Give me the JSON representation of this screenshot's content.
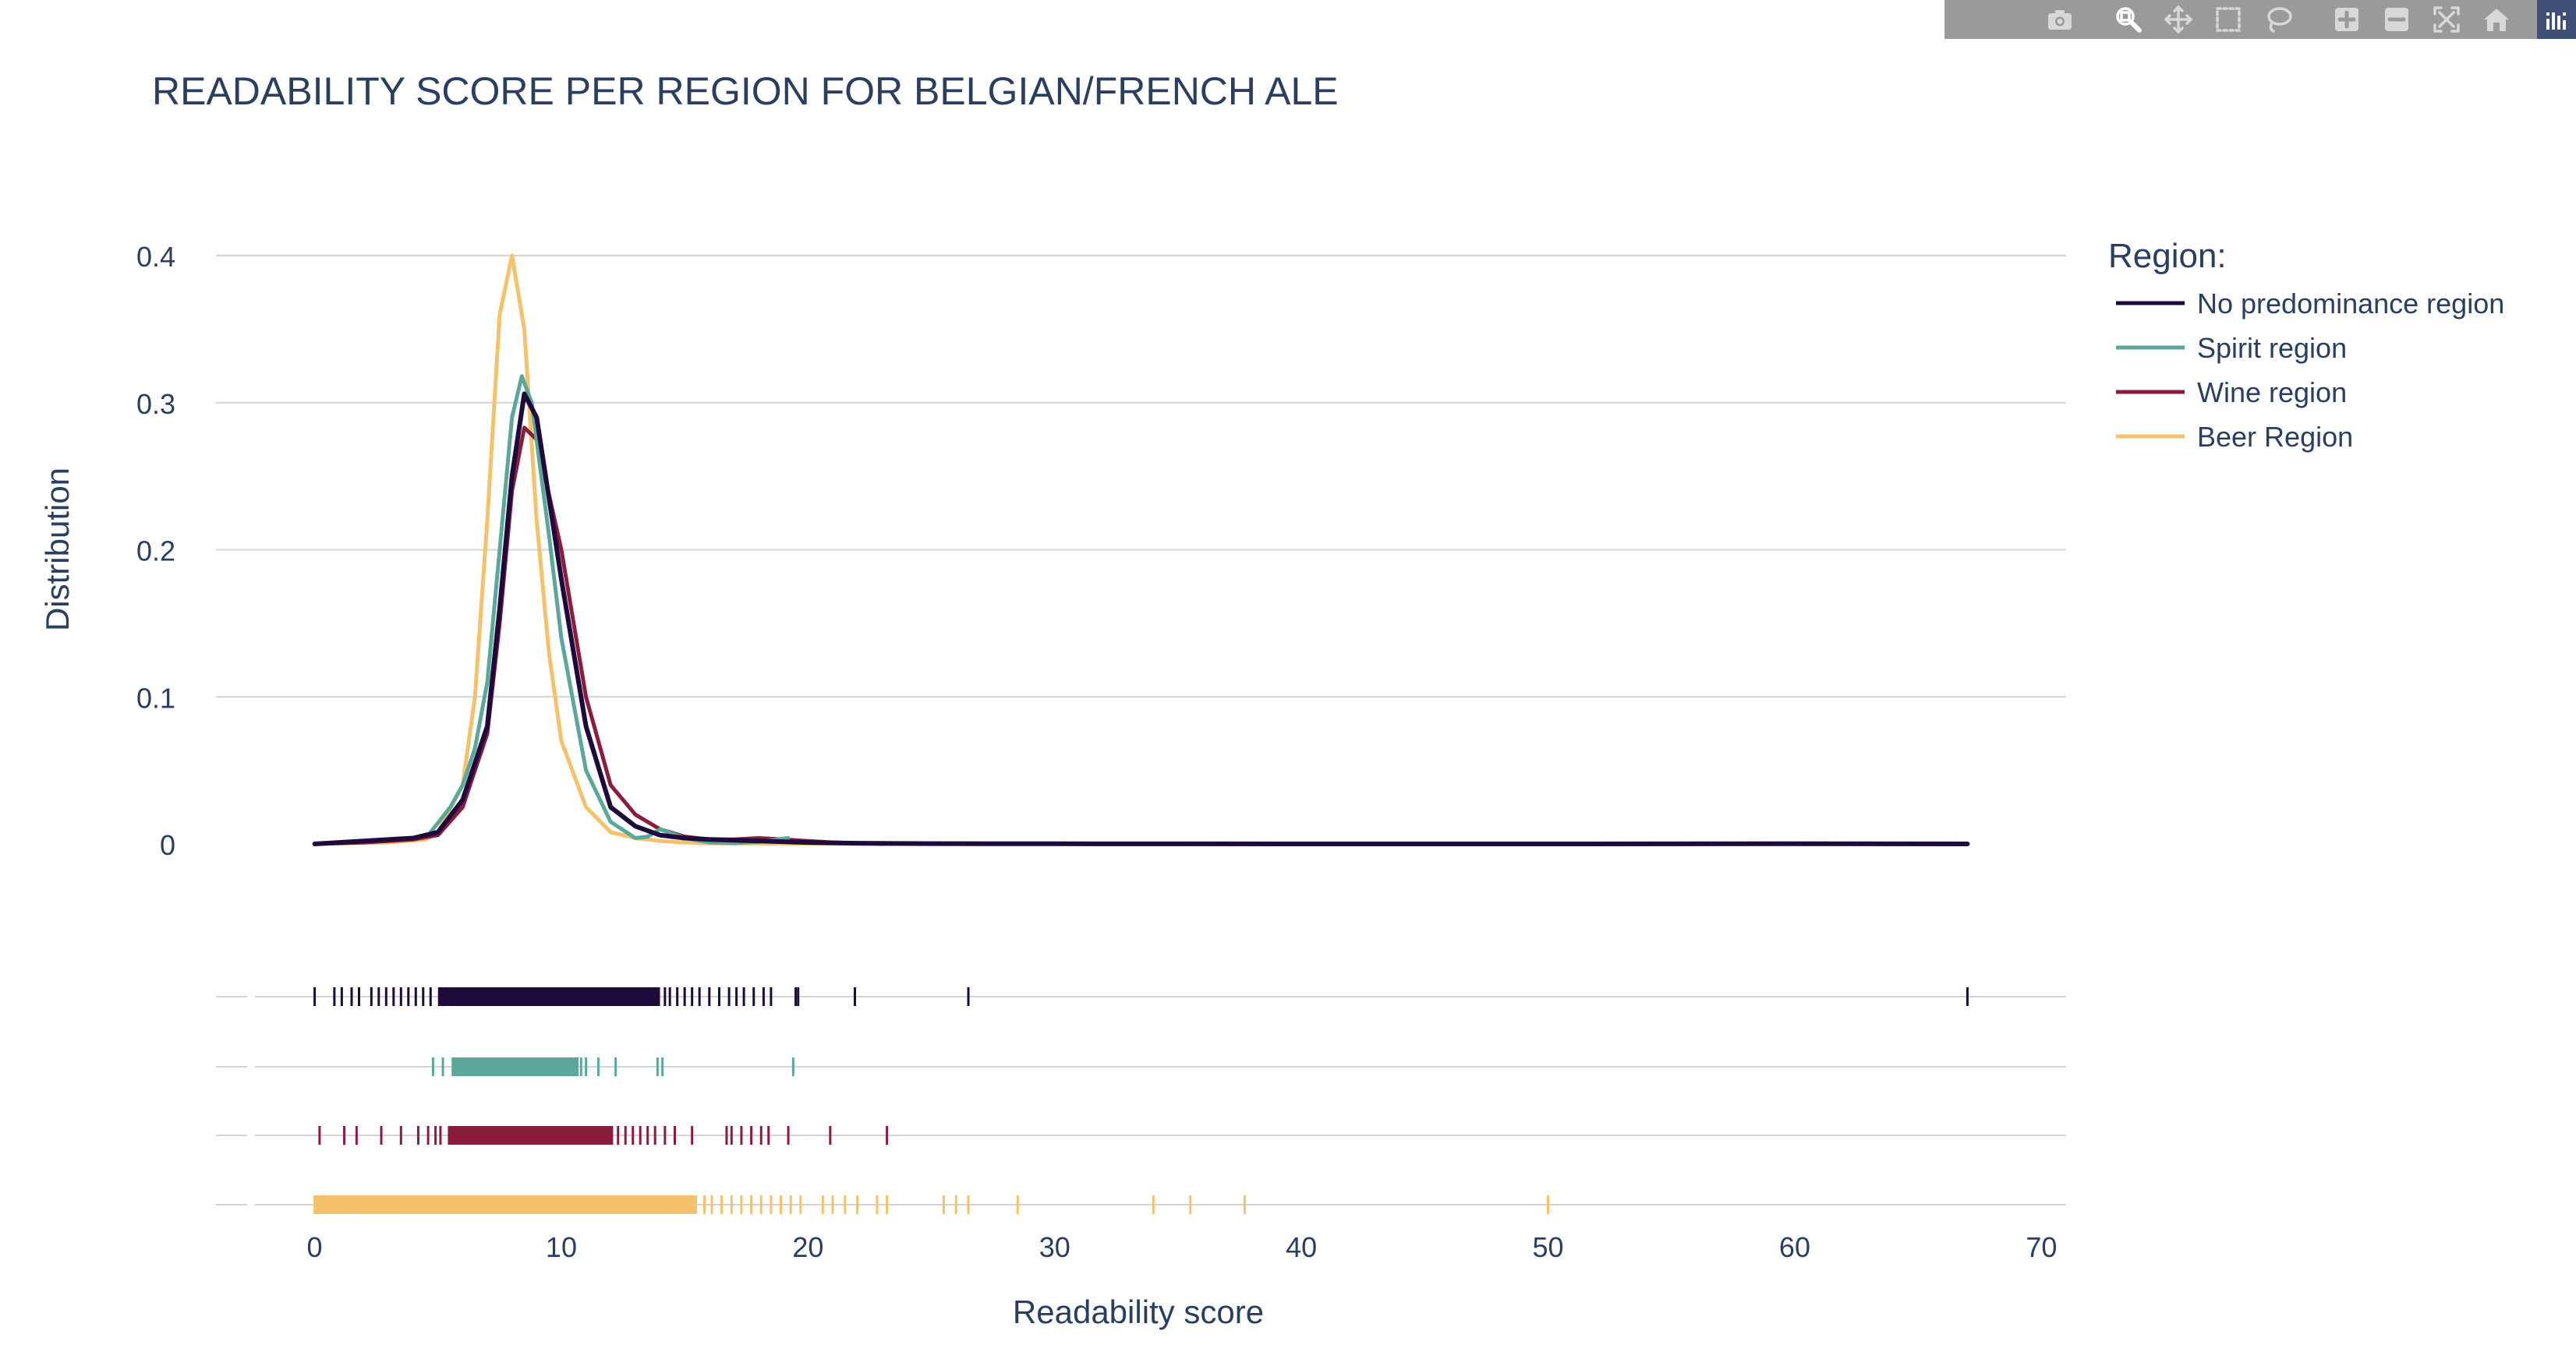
{
  "toolbar": {
    "buttons": [
      {
        "name": "camera-icon",
        "title": "Download plot as a png"
      },
      {
        "name": "zoom-icon",
        "title": "Zoom"
      },
      {
        "name": "pan-icon",
        "title": "Pan"
      },
      {
        "name": "box-select-icon",
        "title": "Box Select"
      },
      {
        "name": "lasso-select-icon",
        "title": "Lasso Select"
      },
      {
        "name": "zoom-in-icon",
        "title": "Zoom in"
      },
      {
        "name": "zoom-out-icon",
        "title": "Zoom out"
      },
      {
        "name": "autoscale-icon",
        "title": "Autoscale"
      },
      {
        "name": "reset-axes-icon",
        "title": "Reset axes"
      }
    ],
    "logo": "plotly-logo-icon"
  },
  "chart_data": {
    "type": "line",
    "title": "READABILITY SCORE PER REGION FOR BELGIAN/FRENCH ALE",
    "xlabel": "Readability score",
    "ylabel": "Distribution",
    "xlim": [
      -4,
      71
    ],
    "ylim": [
      0,
      0.4
    ],
    "x_ticks": [
      0,
      10,
      20,
      30,
      40,
      50,
      60,
      70
    ],
    "y_ticks": [
      0,
      0.1,
      0.2,
      0.3,
      0.4
    ],
    "y_tick_labels": [
      "0",
      "0.1",
      "0.2",
      "0.3",
      "0.4"
    ],
    "grid": true,
    "legend_title": "Region:",
    "legend_position": "top-right",
    "series": [
      {
        "name": "No predominance region",
        "color": "#1e0b3c",
        "x": [
          0,
          2,
          4,
          5,
          6,
          7,
          7.5,
          8,
          8.5,
          9,
          10,
          11,
          12,
          13,
          14,
          15,
          16,
          18,
          20,
          22,
          25,
          30,
          40,
          50,
          60,
          67
        ],
        "y": [
          0,
          0.002,
          0.004,
          0.008,
          0.03,
          0.08,
          0.16,
          0.25,
          0.306,
          0.29,
          0.18,
          0.08,
          0.025,
          0.012,
          0.006,
          0.004,
          0.003,
          0.002,
          0.001,
          0.0005,
          0.0002,
          0.0001,
          0,
          0,
          0.0001,
          0
        ]
      },
      {
        "name": "Spirit region",
        "color": "#5ba89a",
        "x": [
          4.7,
          5.5,
          6,
          6.5,
          7,
          7.5,
          8,
          8.4,
          8.8,
          9.5,
          10,
          11,
          12,
          13,
          13.5,
          14,
          15,
          16,
          17,
          18,
          19.2
        ],
        "y": [
          0.008,
          0.025,
          0.04,
          0.065,
          0.11,
          0.2,
          0.29,
          0.318,
          0.3,
          0.21,
          0.14,
          0.05,
          0.015,
          0.004,
          0.005,
          0.01,
          0.004,
          0.001,
          0.0005,
          0.0015,
          0.004
        ]
      },
      {
        "name": "Wine region",
        "color": "#8c1c3b",
        "x": [
          0,
          2,
          4,
          5,
          6,
          7,
          7.5,
          8,
          8.5,
          9,
          10,
          11,
          12,
          13,
          14,
          15,
          16,
          17,
          18,
          19,
          20,
          21,
          23.2
        ],
        "y": [
          0,
          0.001,
          0.003,
          0.006,
          0.025,
          0.075,
          0.15,
          0.24,
          0.283,
          0.275,
          0.2,
          0.1,
          0.04,
          0.02,
          0.01,
          0.005,
          0.003,
          0.003,
          0.004,
          0.003,
          0.002,
          0.001,
          0
        ]
      },
      {
        "name": "Beer Region",
        "color": "#f5c26b",
        "x": [
          0,
          3,
          4.5,
          5,
          6,
          6.5,
          7,
          7.5,
          8,
          8.5,
          9,
          9.5,
          10,
          11,
          12,
          13,
          14,
          15,
          16,
          18,
          20,
          23,
          26,
          30,
          35,
          40,
          50
        ],
        "y": [
          0,
          0.001,
          0.003,
          0.008,
          0.04,
          0.1,
          0.22,
          0.36,
          0.4,
          0.35,
          0.22,
          0.13,
          0.07,
          0.025,
          0.008,
          0.004,
          0.002,
          0.001,
          0.0005,
          0.0003,
          0.0002,
          0.0001,
          0.0001,
          0.0001,
          0,
          0,
          0
        ]
      }
    ],
    "rug": [
      {
        "name": "No predominance region",
        "color": "#1e0b3c",
        "range": [
          5,
          14
        ],
        "values": [
          0,
          0.8,
          1.1,
          1.5,
          1.8,
          2.3,
          2.6,
          2.9,
          3.2,
          3.5,
          3.8,
          4.1,
          4.4,
          4.7,
          14.2,
          14.4,
          14.7,
          15,
          15.3,
          15.6,
          16,
          16.4,
          16.8,
          17.1,
          17.4,
          17.8,
          18.2,
          18.5,
          19.5,
          19.6,
          21.9,
          26.5,
          67
        ]
      },
      {
        "name": "Spirit region",
        "color": "#5ba89a",
        "range": [
          5.6,
          10.7
        ],
        "values": [
          4.8,
          5.2,
          5.6,
          6.3,
          6.6,
          6.8,
          7,
          10.8,
          11,
          11.5,
          12.2,
          13.9,
          14.1,
          19.4
        ]
      },
      {
        "name": "Wine region",
        "color": "#8c1c3b",
        "range": [
          5.4,
          12.1
        ],
        "values": [
          0.2,
          1.2,
          1.7,
          2.7,
          3.5,
          4.2,
          4.6,
          4.9,
          5.1,
          12.3,
          12.6,
          12.9,
          13.2,
          13.5,
          13.8,
          14.2,
          14.6,
          15.3,
          16.7,
          16.9,
          17.3,
          17.7,
          18.1,
          18.4,
          19.2,
          20.9,
          23.2
        ]
      },
      {
        "name": "Beer Region",
        "color": "#f5c26b",
        "range": [
          0,
          15.5
        ],
        "values": [
          0,
          0.5,
          2.2,
          2.6,
          3,
          15.8,
          16.1,
          16.5,
          16.9,
          17.3,
          17.7,
          18.1,
          18.5,
          18.9,
          19.3,
          19.7,
          20.6,
          21,
          21.5,
          22,
          22.8,
          23.2,
          25.5,
          26,
          26.5,
          28.5,
          34,
          35.5,
          37.7,
          50
        ]
      }
    ]
  }
}
